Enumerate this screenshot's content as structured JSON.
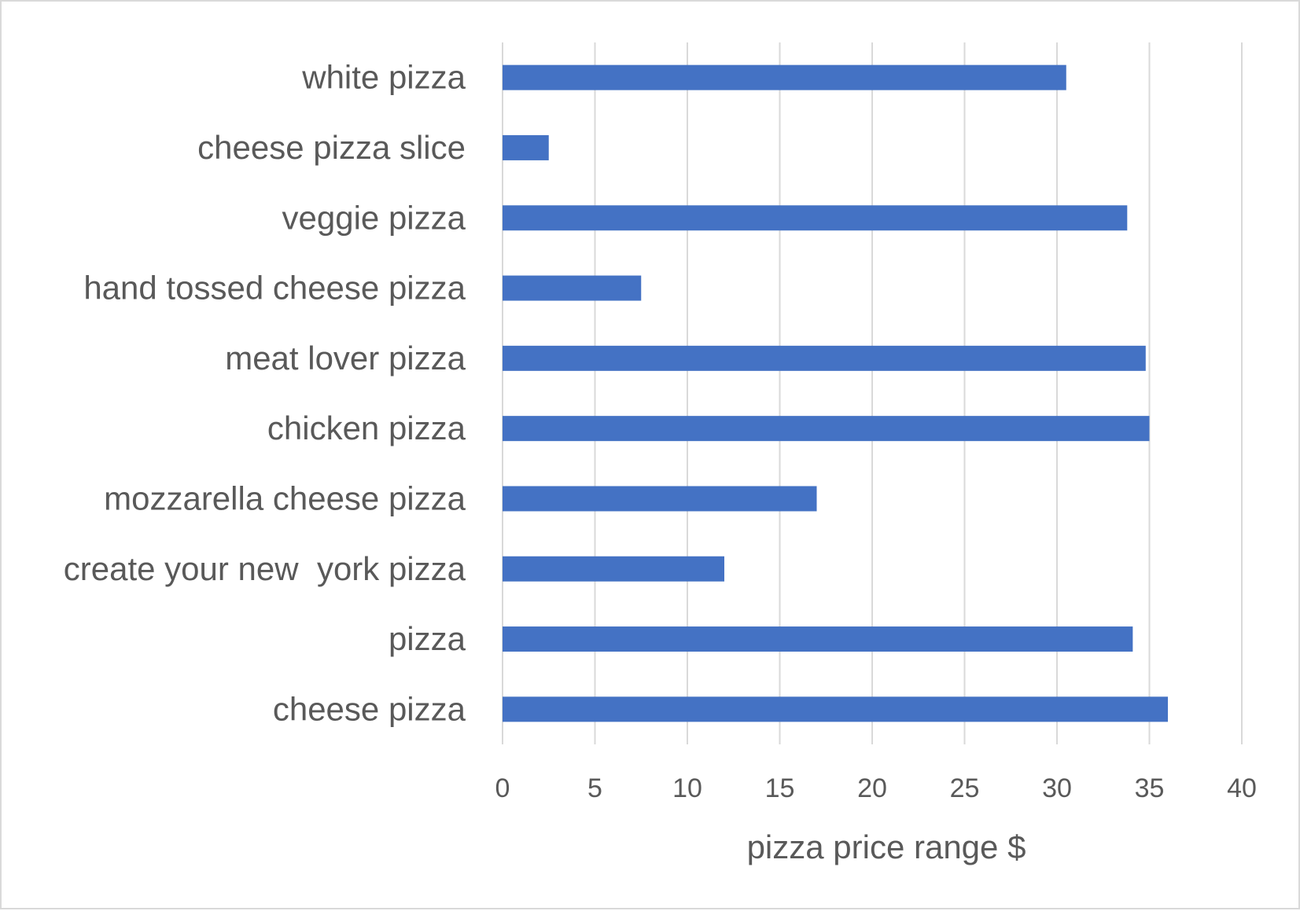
{
  "chart_data": {
    "type": "bar",
    "orientation": "horizontal",
    "categories": [
      "white pizza",
      "cheese pizza slice",
      "veggie pizza",
      "hand tossed cheese pizza",
      "meat lover pizza",
      "chicken pizza",
      "mozzarella cheese pizza",
      "create your new  york pizza",
      "pizza",
      "cheese pizza"
    ],
    "values": [
      30.5,
      2.5,
      33.8,
      7.5,
      34.8,
      35,
      17,
      12,
      34.1,
      36
    ],
    "xlabel": "pizza price range $",
    "ylabel": "",
    "xlim": [
      0,
      40
    ],
    "xticks": [
      "0",
      "5",
      "10",
      "15",
      "20",
      "25",
      "30",
      "35",
      "40"
    ],
    "bar_color": "#4472c4",
    "grid_color": "#d9d9d9",
    "grid": "vertical"
  }
}
